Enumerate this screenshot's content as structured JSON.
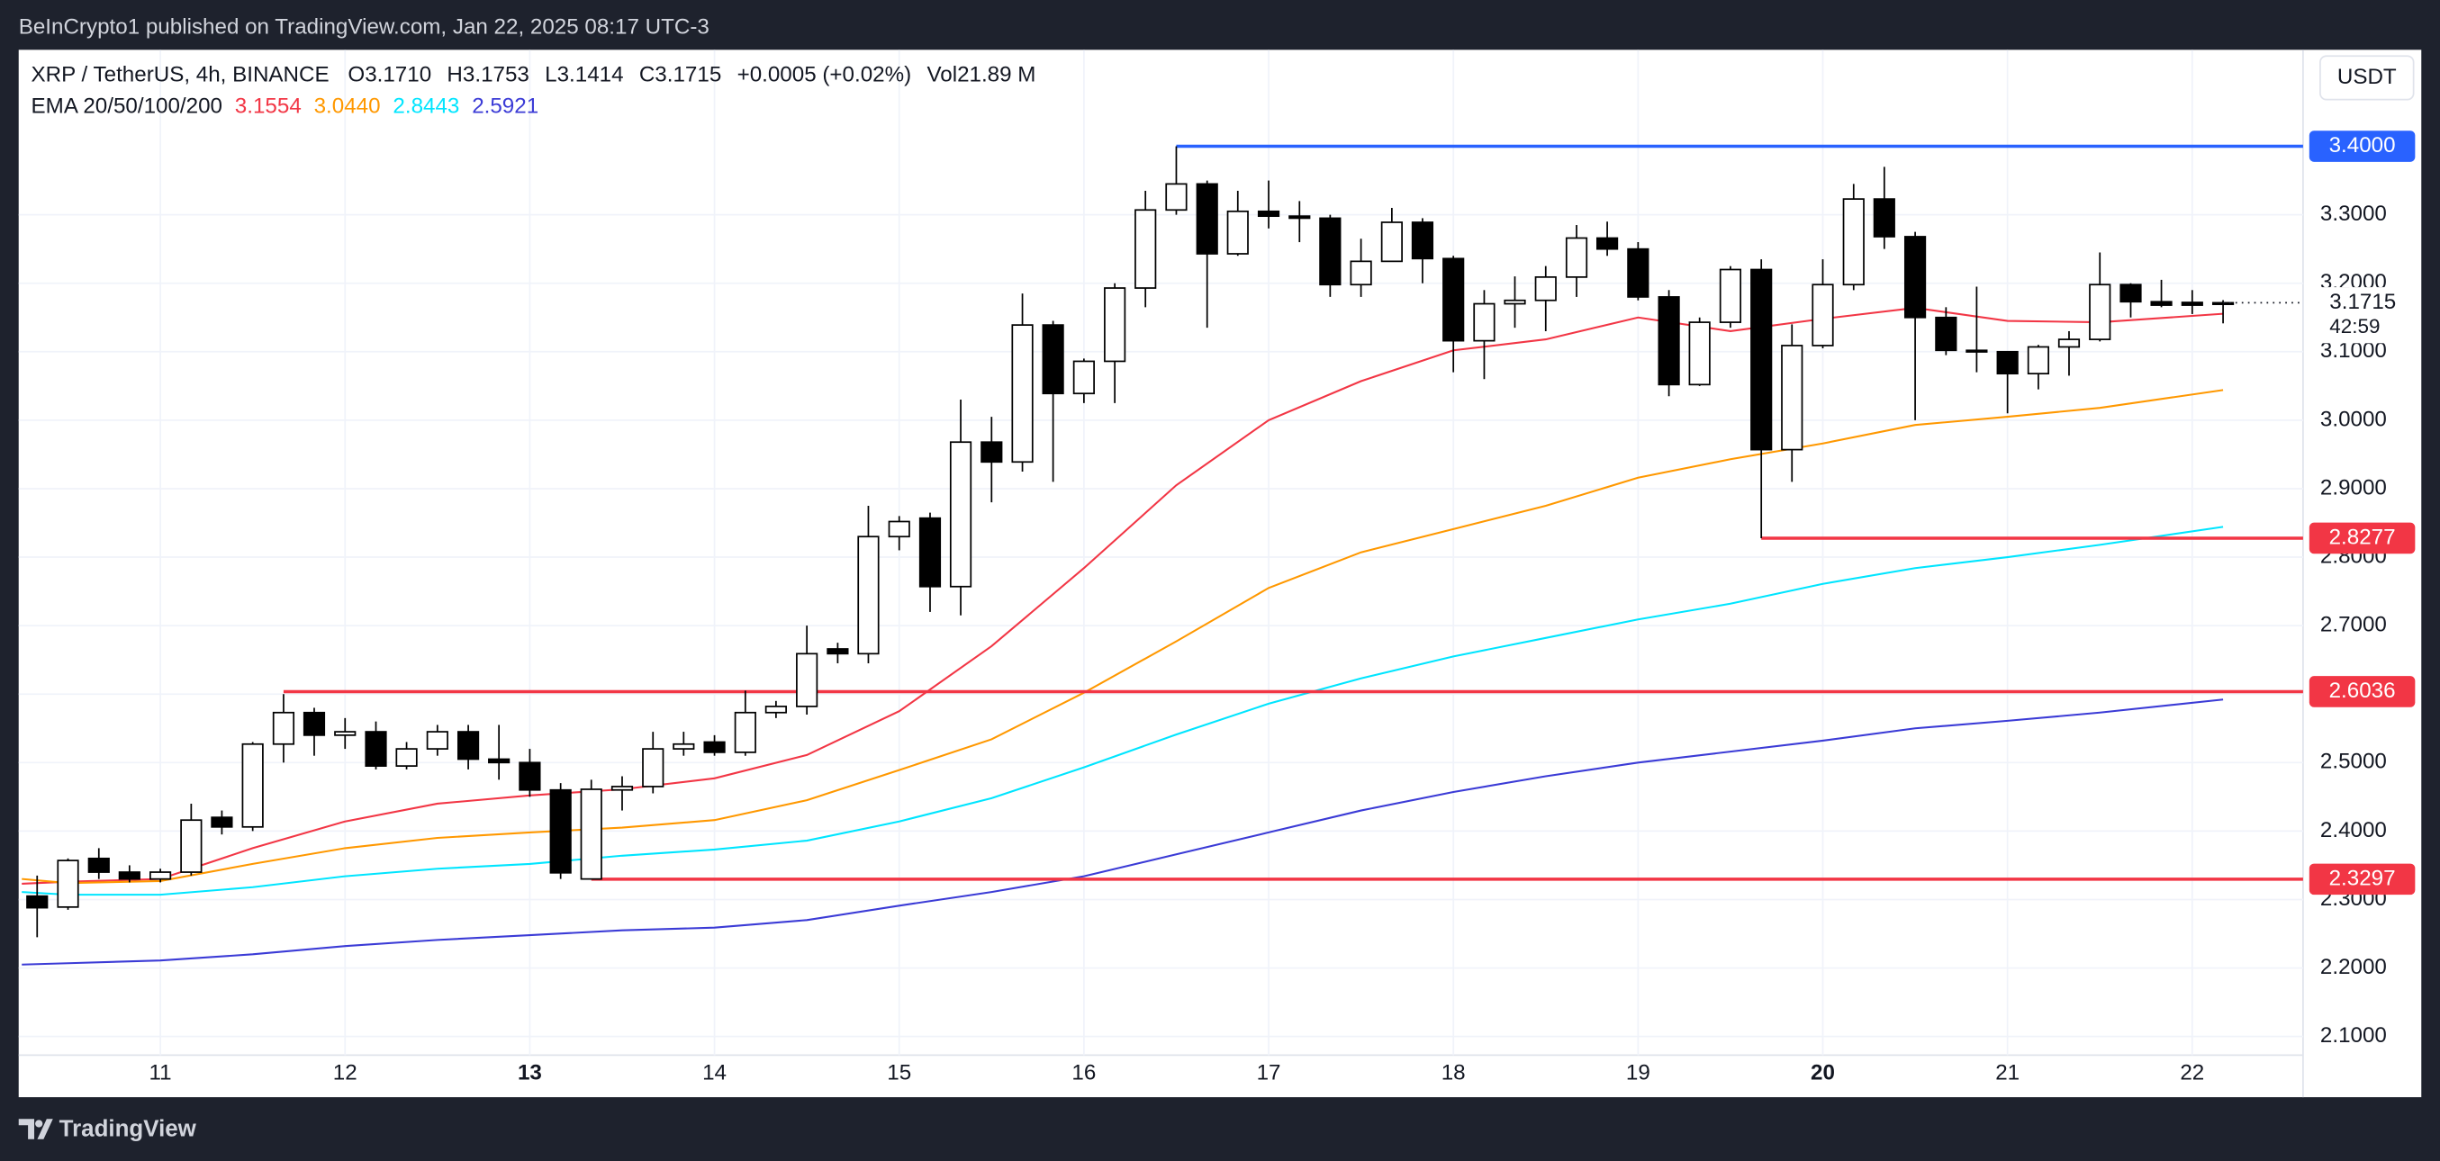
{
  "header": {
    "published": "BeInCrypto1 published on TradingView.com, Jan 22, 2025 08:17 UTC-3"
  },
  "chart_data": {
    "type": "candlestick",
    "symbol": "XRP / TetherUS, 4h, BINANCE",
    "ohlc_legend": [
      {
        "label": "O",
        "value": "3.1710"
      },
      {
        "label": "H",
        "value": "3.1753"
      },
      {
        "label": "L",
        "value": "3.1414"
      },
      {
        "label": "C",
        "value": "3.1715"
      }
    ],
    "change": "+0.0005 (+0.02%)",
    "volume": {
      "label": "Vol",
      "value": "21.89 M"
    },
    "indicator": "EMA 20/50/100/200",
    "indicator_values": [
      "3.1554",
      "3.0440",
      "2.8443",
      "2.5921"
    ],
    "currency": "USDT",
    "countdown": "42:59",
    "x": [
      10.333,
      10.5,
      10.667,
      10.833,
      11,
      11.167,
      11.333,
      11.5,
      11.667,
      11.833,
      12,
      12.167,
      12.333,
      12.5,
      12.667,
      12.833,
      13,
      13.167,
      13.333,
      13.5,
      13.667,
      13.833,
      14,
      14.167,
      14.333,
      14.5,
      14.667,
      14.833,
      15,
      15.167,
      15.333,
      15.5,
      15.667,
      15.833,
      16,
      16.167,
      16.333,
      16.5,
      16.667,
      16.833,
      17,
      17.167,
      17.333,
      17.5,
      17.667,
      17.833,
      18,
      18.167,
      18.333,
      18.5,
      18.667,
      18.833,
      19,
      19.167,
      19.333,
      19.5,
      19.667,
      19.833,
      20,
      20.167,
      20.333,
      20.5,
      20.667,
      20.833,
      21,
      21.167,
      21.333,
      21.5,
      21.667,
      21.833,
      22,
      22.167
    ],
    "open": [
      2.305,
      2.289,
      2.36,
      2.34,
      2.33,
      2.34,
      2.42,
      2.406,
      2.527,
      2.573,
      2.54,
      2.545,
      2.495,
      2.52,
      2.545,
      2.505,
      2.5,
      2.46,
      2.33,
      2.46,
      2.465,
      2.52,
      2.53,
      2.515,
      2.573,
      2.582,
      2.666,
      2.659,
      2.83,
      2.857,
      2.757,
      2.968,
      2.939,
      3.139,
      3.039,
      3.086,
      3.193,
      3.307,
      3.345,
      3.243,
      3.305,
      3.298,
      3.295,
      3.198,
      3.232,
      3.289,
      3.236,
      3.116,
      3.17,
      3.175,
      3.209,
      3.266,
      3.25,
      3.18,
      3.052,
      3.143,
      3.22,
      2.957,
      3.109,
      3.198,
      3.323,
      3.268,
      3.15,
      3.102,
      3.1,
      3.068,
      3.107,
      3.118,
      3.198,
      3.173,
      3.172,
      3.171
    ],
    "high": [
      2.335,
      2.36,
      2.375,
      2.35,
      2.345,
      2.44,
      2.43,
      2.53,
      2.6,
      2.58,
      2.565,
      2.56,
      2.53,
      2.555,
      2.555,
      2.555,
      2.52,
      2.47,
      2.475,
      2.48,
      2.545,
      2.545,
      2.54,
      2.605,
      2.59,
      2.7,
      2.675,
      2.875,
      2.86,
      2.865,
      3.03,
      3.005,
      3.185,
      3.145,
      3.09,
      3.2,
      3.335,
      3.4,
      3.35,
      3.335,
      3.35,
      3.32,
      3.3,
      3.265,
      3.31,
      3.295,
      3.24,
      3.19,
      3.21,
      3.225,
      3.285,
      3.29,
      3.26,
      3.19,
      3.15,
      3.225,
      3.235,
      3.14,
      3.235,
      3.345,
      3.37,
      3.275,
      3.165,
      3.195,
      3.1,
      3.11,
      3.13,
      3.245,
      3.2,
      3.205,
      3.19,
      3.1753
    ],
    "low": [
      2.245,
      2.285,
      2.33,
      2.325,
      2.325,
      2.335,
      2.395,
      2.4,
      2.5,
      2.51,
      2.52,
      2.49,
      2.49,
      2.51,
      2.49,
      2.475,
      2.45,
      2.33,
      2.3297,
      2.43,
      2.455,
      2.51,
      2.51,
      2.51,
      2.565,
      2.57,
      2.645,
      2.645,
      2.81,
      2.72,
      2.715,
      2.88,
      2.925,
      2.91,
      3.025,
      3.025,
      3.165,
      3.3,
      3.135,
      3.24,
      3.28,
      3.26,
      3.18,
      3.18,
      3.235,
      3.2,
      3.07,
      3.06,
      3.135,
      3.13,
      3.18,
      3.24,
      3.175,
      3.035,
      3.05,
      3.135,
      2.8277,
      2.91,
      3.105,
      3.19,
      3.25,
      3.0,
      3.095,
      3.07,
      3.01,
      3.045,
      3.065,
      3.115,
      3.15,
      3.165,
      3.155,
      3.1414
    ],
    "close": [
      2.288,
      2.357,
      2.34,
      2.33,
      2.34,
      2.416,
      2.406,
      2.527,
      2.573,
      2.54,
      2.545,
      2.495,
      2.52,
      2.545,
      2.505,
      2.5,
      2.46,
      2.339,
      2.461,
      2.465,
      2.52,
      2.527,
      2.515,
      2.573,
      2.582,
      2.659,
      2.659,
      2.83,
      2.852,
      2.757,
      2.968,
      2.939,
      3.139,
      3.039,
      3.086,
      3.193,
      3.307,
      3.345,
      3.243,
      3.305,
      3.298,
      3.295,
      3.198,
      3.232,
      3.289,
      3.236,
      3.116,
      3.17,
      3.175,
      3.209,
      3.266,
      3.25,
      3.18,
      3.052,
      3.143,
      3.22,
      2.957,
      3.109,
      3.198,
      3.323,
      3.268,
      3.15,
      3.102,
      3.1,
      3.068,
      3.107,
      3.118,
      3.198,
      3.173,
      3.168,
      3.168,
      3.1715
    ],
    "series": [
      {
        "color": "#f23645",
        "x": [
          10.25,
          10.5,
          11,
          11.5,
          12,
          12.5,
          13,
          13.5,
          14,
          14.5,
          15,
          15.5,
          16,
          16.5,
          17,
          17.5,
          18,
          18.5,
          19,
          19.5,
          20,
          20.5,
          21,
          21.5,
          22.167
        ],
        "values": [
          2.323,
          2.326,
          2.33,
          2.375,
          2.414,
          2.44,
          2.452,
          2.461,
          2.477,
          2.511,
          2.575,
          2.67,
          2.784,
          2.905,
          3.0,
          3.057,
          3.102,
          3.118,
          3.15,
          3.13,
          3.148,
          3.164,
          3.145,
          3.143,
          3.1554
        ]
      },
      {
        "color": "#ff9800",
        "x": [
          10.25,
          10.5,
          11,
          11.5,
          12,
          12.5,
          13,
          13.5,
          14,
          14.5,
          15,
          15.5,
          16,
          16.5,
          17,
          17.5,
          18,
          18.5,
          19,
          19.5,
          20,
          20.5,
          21,
          21.5,
          22.167
        ],
        "values": [
          2.33,
          2.324,
          2.327,
          2.352,
          2.375,
          2.39,
          2.398,
          2.405,
          2.416,
          2.445,
          2.489,
          2.534,
          2.602,
          2.677,
          2.755,
          2.807,
          2.841,
          2.875,
          2.916,
          2.943,
          2.966,
          2.993,
          3.005,
          3.018,
          3.044
        ]
      },
      {
        "color": "#00e5ff",
        "x": [
          10.25,
          10.5,
          11,
          11.5,
          12,
          12.5,
          13,
          13.5,
          14,
          14.5,
          15,
          15.5,
          16,
          16.5,
          17,
          17.5,
          18,
          18.5,
          19,
          19.5,
          20,
          20.5,
          21,
          21.5,
          22.167
        ],
        "values": [
          2.311,
          2.307,
          2.307,
          2.318,
          2.334,
          2.345,
          2.352,
          2.364,
          2.373,
          2.386,
          2.414,
          2.448,
          2.493,
          2.541,
          2.586,
          2.623,
          2.655,
          2.682,
          2.709,
          2.732,
          2.761,
          2.784,
          2.8,
          2.818,
          2.8443
        ]
      },
      {
        "color": "#3b3bd6",
        "x": [
          10.25,
          10.5,
          11,
          11.5,
          12,
          12.5,
          13,
          13.5,
          14,
          14.5,
          15,
          15.5,
          16,
          16.5,
          17,
          17.5,
          18,
          18.5,
          19,
          19.5,
          20,
          20.5,
          21,
          21.5,
          22.167
        ],
        "values": [
          2.205,
          2.207,
          2.211,
          2.22,
          2.232,
          2.241,
          2.248,
          2.255,
          2.259,
          2.27,
          2.291,
          2.311,
          2.334,
          2.366,
          2.398,
          2.43,
          2.457,
          2.48,
          2.5,
          2.516,
          2.532,
          2.55,
          2.561,
          2.573,
          2.5921
        ]
      }
    ],
    "levels": [
      {
        "value": 3.4,
        "label": "3.4000",
        "x_start": 16.5,
        "color": "#2962ff"
      },
      {
        "value": 2.8277,
        "label": "2.8277",
        "x_start": 19.667,
        "color": "#f23645"
      },
      {
        "value": 2.6036,
        "label": "2.6036",
        "x_start": 11.667,
        "color": "#f23645"
      },
      {
        "value": 2.3297,
        "label": "2.3297",
        "x_start": 13.333,
        "color": "#f23645"
      }
    ],
    "xlim": [
      10.233,
      22.6
    ],
    "xticks": [
      11,
      12,
      13,
      14,
      15,
      16,
      17,
      18,
      19,
      20,
      21,
      22
    ],
    "bold_xticks": [
      13,
      20
    ],
    "ylim": [
      2.0727,
      3.5409
    ],
    "yticks": [
      {
        "value": 2.1,
        "label": "2.1000"
      },
      {
        "value": 2.2,
        "label": "2.2000"
      },
      {
        "value": 2.3,
        "label": "2.3000"
      },
      {
        "value": 2.4,
        "label": "2.4000"
      },
      {
        "value": 2.5,
        "label": "2.5000"
      },
      {
        "value": 2.6,
        "label": "2.6000"
      },
      {
        "value": 2.7,
        "label": "2.7000"
      },
      {
        "value": 2.8,
        "label": "2.8000"
      },
      {
        "value": 2.9,
        "label": "2.9000"
      },
      {
        "value": 3.0,
        "label": "3.0000"
      },
      {
        "value": 3.1,
        "label": "3.1000"
      },
      {
        "value": 3.2,
        "label": "3.2000"
      },
      {
        "value": 3.3,
        "label": "3.3000"
      }
    ],
    "grid": true
  },
  "footer": {
    "brand": "TradingView"
  }
}
